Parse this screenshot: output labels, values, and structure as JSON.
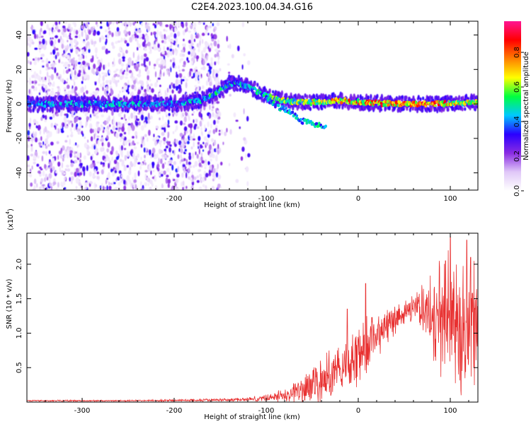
{
  "title": "C2E4.2023.100.04.34.G16",
  "chart_data": [
    {
      "type": "heatmap",
      "xlabel": "Height of straight line (km)",
      "ylabel": "Frequency (Hz)",
      "xlim": [
        -360,
        130
      ],
      "ylim": [
        -50,
        48
      ],
      "xticks": [
        -300,
        -200,
        -100,
        0,
        100
      ],
      "yticks": [
        -40,
        -20,
        0,
        20,
        40
      ],
      "colorbar": {
        "label": "Normalized spectral amplitude",
        "range": [
          0.0,
          0.98
        ],
        "ticks": [
          "0.0",
          "0.2",
          "0.4",
          "0.6",
          "0.8"
        ],
        "colors": [
          "#ffffff",
          "#e0c8f8",
          "#8a2be2",
          "#2a00ff",
          "#00c8ff",
          "#00ff40",
          "#ffff00",
          "#ff8000",
          "#ff0000",
          "#ff1493"
        ]
      },
      "ridge": {
        "x": [
          -360,
          -300,
          -250,
          -200,
          -170,
          -150,
          -140,
          -130,
          -120,
          -100,
          -90,
          -80,
          -60,
          -40,
          -20,
          0,
          40,
          80,
          130
        ],
        "frequency": [
          0,
          0,
          0,
          0,
          2,
          8,
          12,
          12,
          10,
          5,
          3,
          2,
          1,
          1,
          2,
          1,
          0,
          0,
          1
        ],
        "peak_amplitude": [
          0.45,
          0.5,
          0.5,
          0.45,
          0.55,
          0.6,
          0.55,
          0.55,
          0.5,
          0.6,
          0.65,
          0.7,
          0.7,
          0.75,
          0.85,
          0.9,
          0.9,
          0.95,
          0.7
        ]
      },
      "secondary_branch": {
        "x": [
          -100,
          -85,
          -70,
          -60,
          -45,
          -35
        ],
        "frequency": [
          3,
          -2,
          -6,
          -10,
          -12,
          -14
        ]
      },
      "noise_region_x": [
        -360,
        -150
      ]
    },
    {
      "type": "line",
      "xlabel": "Height of straight line (km)",
      "ylabel": "SNR (10 * v/v)",
      "multiplier": "(x10",
      "multiplier_exp": "4",
      "multiplier_close": ")",
      "xlim": [
        -360,
        130
      ],
      "ylim": [
        0,
        2.45
      ],
      "xticks": [
        -300,
        -200,
        -100,
        0,
        100
      ],
      "yticks": [
        "0.5",
        "1.0",
        "1.5",
        "2.0"
      ],
      "color": "#e83030",
      "envelope": {
        "x": [
          -360,
          -250,
          -150,
          -120,
          -100,
          -80,
          -60,
          -40,
          -20,
          0,
          10,
          20,
          30,
          40,
          50,
          60,
          70,
          80,
          90,
          100,
          110,
          120,
          130
        ],
        "baseline": [
          0.02,
          0.02,
          0.03,
          0.04,
          0.06,
          0.1,
          0.18,
          0.3,
          0.45,
          0.7,
          0.85,
          1.0,
          1.1,
          1.2,
          1.3,
          1.4,
          1.35,
          1.3,
          1.25,
          1.2,
          1.2,
          1.1,
          1.0
        ],
        "spread": [
          0.01,
          0.01,
          0.02,
          0.03,
          0.05,
          0.1,
          0.25,
          0.35,
          0.4,
          0.45,
          0.45,
          0.35,
          0.25,
          0.2,
          0.15,
          0.2,
          0.35,
          0.55,
          0.8,
          0.9,
          1.0,
          1.1,
          1.0
        ]
      },
      "peaks": [
        {
          "x": 100,
          "y": 2.4
        },
        {
          "x": 118,
          "y": 2.35
        },
        {
          "x": 95,
          "y": 2.05
        },
        {
          "x": 122,
          "y": 2.1
        },
        {
          "x": 8,
          "y": 1.72
        },
        {
          "x": -12,
          "y": 1.35
        }
      ]
    }
  ]
}
